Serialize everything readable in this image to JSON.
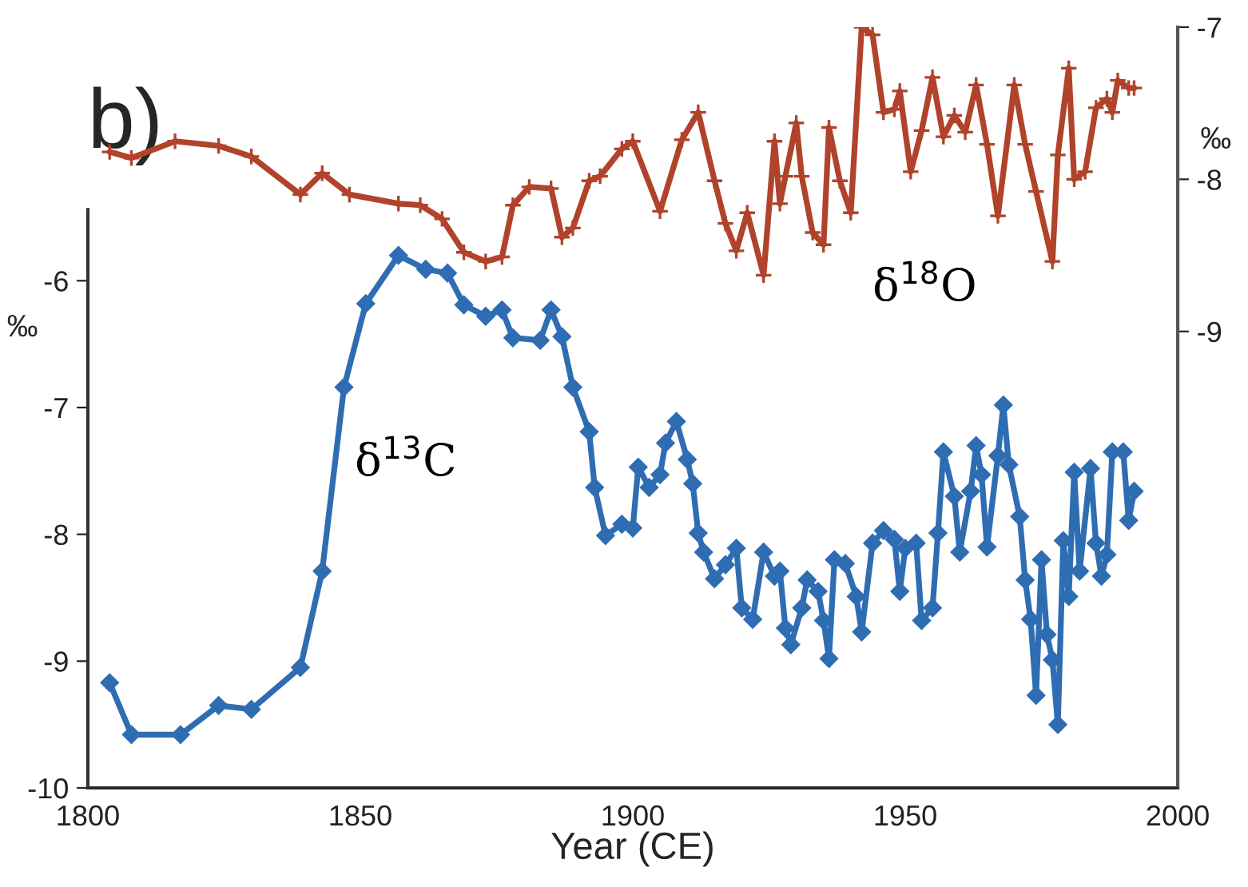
{
  "chart_data": {
    "type": "line",
    "xlabel": "Year (CE)",
    "ylabel": "‰",
    "y2label": "‰",
    "annotations": [
      "b)"
    ],
    "xlim": [
      1800,
      2000
    ],
    "xticks": [
      1800,
      1850,
      1900,
      1950,
      2000
    ],
    "ylim": [
      -10,
      -4
    ],
    "yticks": [
      -10,
      -9,
      -8,
      -7,
      -6
    ],
    "y2lim": [
      -12,
      -7
    ],
    "y2ticks": [
      -9,
      -8,
      -7
    ],
    "grid": false,
    "legend": false,
    "series": [
      {
        "name": "δ$^{13}$C",
        "color": "#2f6db3",
        "marker": "diamond",
        "axis": "y",
        "x": [
          1804,
          1808,
          1817,
          1824,
          1830,
          1839,
          1843,
          1847,
          1851,
          1857,
          1862,
          1866,
          1869,
          1873,
          1876,
          1878,
          1883,
          1885,
          1887,
          1889,
          1892,
          1893,
          1895,
          1898,
          1900,
          1901,
          1903,
          1905,
          1906,
          1908,
          1910,
          1911,
          1912,
          1913,
          1915,
          1917,
          1919,
          1920,
          1922,
          1924,
          1926,
          1927,
          1928,
          1929,
          1931,
          1932,
          1934,
          1935,
          1936,
          1937,
          1939,
          1941,
          1942,
          1944,
          1946,
          1948,
          1949,
          1950,
          1952,
          1953,
          1955,
          1956,
          1957,
          1959,
          1960,
          1962,
          1963,
          1964,
          1965,
          1967,
          1968,
          1969,
          1971,
          1972,
          1973,
          1974,
          1975,
          1976,
          1977,
          1978,
          1979,
          1980,
          1981,
          1982,
          1984,
          1985,
          1986,
          1987,
          1988,
          1990,
          1991,
          1992
        ],
        "values": [
          -9.17,
          -9.58,
          -9.58,
          -9.35,
          -9.38,
          -9.05,
          -8.29,
          -6.84,
          -6.18,
          -5.8,
          -5.91,
          -5.94,
          -6.19,
          -6.28,
          -6.23,
          -6.45,
          -6.47,
          -6.23,
          -6.44,
          -6.84,
          -7.19,
          -7.63,
          -8.01,
          -7.92,
          -7.95,
          -7.47,
          -7.63,
          -7.53,
          -7.28,
          -7.11,
          -7.41,
          -7.6,
          -7.99,
          -8.14,
          -8.35,
          -8.24,
          -8.11,
          -8.58,
          -8.67,
          -8.14,
          -8.33,
          -8.29,
          -8.74,
          -8.87,
          -8.58,
          -8.36,
          -8.45,
          -8.68,
          -8.98,
          -8.2,
          -8.23,
          -8.49,
          -8.77,
          -8.07,
          -7.97,
          -8.04,
          -8.45,
          -8.11,
          -8.07,
          -8.68,
          -8.58,
          -7.99,
          -7.35,
          -7.7,
          -8.14,
          -7.66,
          -7.3,
          -7.53,
          -8.1,
          -7.38,
          -6.98,
          -7.45,
          -7.86,
          -8.36,
          -8.67,
          -9.27,
          -8.2,
          -8.79,
          -8.99,
          -9.5,
          -8.05,
          -8.49,
          -7.51,
          -8.29,
          -7.48,
          -8.07,
          -8.33,
          -8.16,
          -7.35,
          -7.35,
          -7.89,
          -7.66
        ]
      },
      {
        "name": "δ$^{18}$O",
        "color": "#b0432a",
        "marker": "cross",
        "axis": "y2",
        "x": [
          1804,
          1808,
          1816,
          1824,
          1830,
          1839,
          1843,
          1848,
          1857,
          1861,
          1865,
          1869,
          1873,
          1876,
          1878,
          1881,
          1885,
          1887,
          1889,
          1892,
          1894,
          1898,
          1900,
          1905,
          1909,
          1912,
          1915,
          1917,
          1919,
          1921,
          1924,
          1926,
          1927,
          1928,
          1930,
          1931,
          1933,
          1935,
          1936,
          1938,
          1940,
          1942,
          1944,
          1946,
          1948,
          1949,
          1951,
          1953,
          1955,
          1957,
          1959,
          1961,
          1963,
          1965,
          1967,
          1970,
          1972,
          1974,
          1977,
          1978,
          1980,
          1981,
          1983,
          1985,
          1987,
          1988,
          1989,
          1991,
          1992
        ],
        "values": [
          -7.82,
          -7.86,
          -7.75,
          -7.78,
          -7.85,
          -8.1,
          -7.96,
          -8.1,
          -8.16,
          -8.17,
          -8.26,
          -8.48,
          -8.54,
          -8.51,
          -8.17,
          -8.05,
          -8.06,
          -8.38,
          -8.32,
          -8.01,
          -7.98,
          -7.8,
          -7.75,
          -8.21,
          -7.74,
          -7.56,
          -8.01,
          -8.29,
          -8.47,
          -8.22,
          -8.63,
          -7.75,
          -8.16,
          -7.98,
          -7.63,
          -7.98,
          -8.35,
          -8.43,
          -7.66,
          -8.01,
          -8.22,
          -7.0,
          -7.05,
          -7.56,
          -7.54,
          -7.42,
          -7.95,
          -7.68,
          -7.33,
          -7.72,
          -7.58,
          -7.69,
          -7.38,
          -7.77,
          -8.24,
          -7.38,
          -7.77,
          -8.08,
          -8.54,
          -7.84,
          -7.27,
          -8.0,
          -7.95,
          -7.53,
          -7.47,
          -7.56,
          -7.35,
          -7.4,
          -7.4
        ]
      }
    ]
  }
}
